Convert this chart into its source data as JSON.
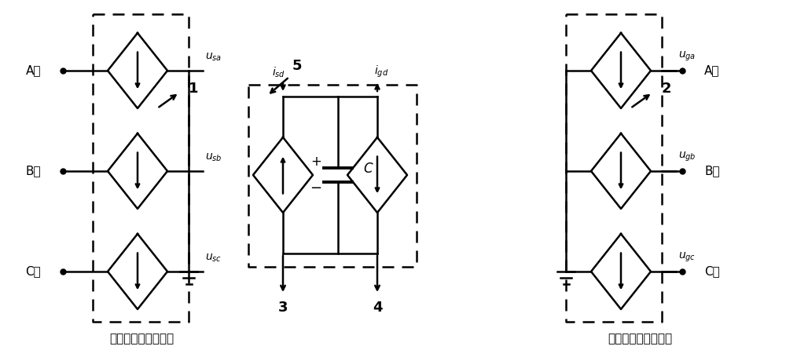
{
  "background_color": "#ffffff",
  "line_color": "#000000",
  "line_width": 1.8,
  "fig_width": 10.0,
  "fig_height": 4.46,
  "dpi": 100,
  "left_block_label": "机侧变流器等效模型",
  "right_block_label": "网侧变流器等效模型",
  "left_phases": [
    "A相",
    "B相",
    "C相"
  ],
  "right_phases": [
    "A相",
    "B相",
    "C相"
  ],
  "left_voltages": [
    "{sa}",
    "{sb}",
    "{sc}"
  ],
  "right_voltages": [
    "{ga}",
    "{gb}",
    "{gc}"
  ],
  "current_left": "{sd}",
  "current_right": "{gd}",
  "cap_label": "C",
  "labels_1_2_3_4_5": [
    "1",
    "2",
    "3",
    "4",
    "5"
  ]
}
